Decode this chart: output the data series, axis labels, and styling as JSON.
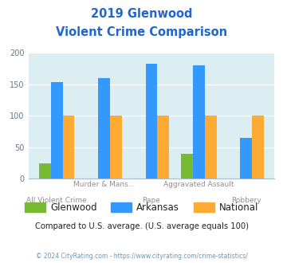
{
  "title_line1": "2019 Glenwood",
  "title_line2": "Violent Crime Comparison",
  "categories": [
    "All Violent Crime",
    "Murder & Mans...",
    "Rape",
    "Aggravated Assault",
    "Robbery"
  ],
  "glenwood": [
    25,
    0,
    0,
    40,
    0
  ],
  "arkansas": [
    153,
    160,
    182,
    180,
    65
  ],
  "national": [
    100,
    100,
    100,
    100,
    100
  ],
  "colors": {
    "glenwood": "#77bb33",
    "arkansas": "#3399ff",
    "national": "#ffaa33"
  },
  "ylim": [
    0,
    200
  ],
  "yticks": [
    0,
    50,
    100,
    150,
    200
  ],
  "plot_bg": "#ddeef2",
  "title_color": "#2266cc",
  "xtick_color": "#998899",
  "ytick_color": "#667788",
  "subtitle_text": "Compared to U.S. average. (U.S. average equals 100)",
  "footer_text": "© 2024 CityRating.com - https://www.cityrating.com/crime-statistics/",
  "subtitle_color": "#222222",
  "footer_color": "#6699bb",
  "legend_text_color": "#222222",
  "bar_width": 0.25,
  "label_offsets": [
    0.5,
    2.5,
    4.5
  ],
  "label_texts": [
    "All Violent Crime\n  Murder & Mans...",
    "Rape\nAggravated Assault",
    "Robbery"
  ]
}
